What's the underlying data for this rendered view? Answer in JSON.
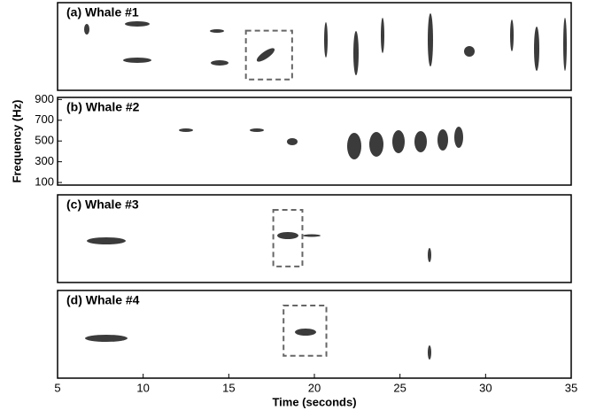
{
  "chart_data": [
    {
      "type": "spectrogram",
      "title": "(a) Whale #1",
      "xlim": [
        5,
        35
      ],
      "ylim": [
        75,
        920
      ],
      "boxes": [
        {
          "x": [
            16,
            18.7
          ],
          "y": [
            180,
            650
          ]
        }
      ]
    },
    {
      "type": "spectrogram",
      "title": "(b) Whale #2",
      "ylabel": "Frequency (Hz)",
      "xlim": [
        5,
        35
      ],
      "ylim": [
        75,
        920
      ],
      "yticks": [
        100,
        300,
        500,
        700,
        900
      ]
    },
    {
      "type": "spectrogram",
      "title": "(c) Whale #3",
      "xlim": [
        5,
        35
      ],
      "ylim": [
        75,
        920
      ],
      "boxes": [
        {
          "x": [
            17.6,
            19.3
          ],
          "y": [
            230,
            775
          ]
        }
      ]
    },
    {
      "type": "spectrogram",
      "title": "(d) Whale #4",
      "xlabel": "Time (seconds)",
      "xlim": [
        5,
        35
      ],
      "ylim": [
        75,
        920
      ],
      "xticks": [
        5,
        10,
        15,
        20,
        25,
        30,
        35
      ],
      "boxes": [
        {
          "x": [
            18.2,
            20.7
          ],
          "y": [
            290,
            775
          ]
        }
      ]
    }
  ]
}
